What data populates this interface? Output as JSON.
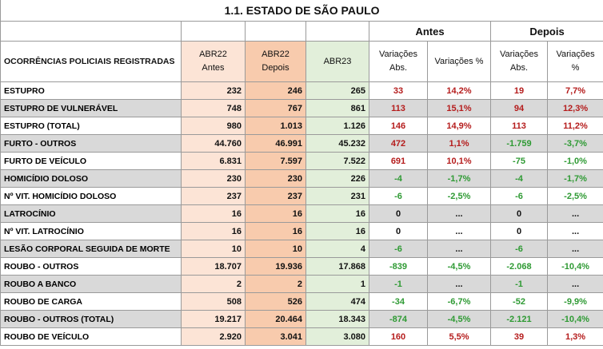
{
  "title": "1.1. ESTADO DE SÃO PAULO",
  "groups": {
    "antes": "Antes",
    "depois": "Depois"
  },
  "headers": {
    "ocorrencias": "OCORRÊNCIAS POLICIAIS REGISTRADAS",
    "abr22_antes_1": "ABR22",
    "abr22_antes_2": "Antes",
    "abr22_depois_1": "ABR22",
    "abr22_depois_2": "Depois",
    "abr23": "ABR23",
    "var_abs_1": "Variações",
    "var_abs_2": "Abs.",
    "var_pct": "Variações %",
    "dep_var_abs_1": "Variações",
    "dep_var_abs_2": "Abs.",
    "dep_var_pct_1": "Variações",
    "dep_var_pct_2": "%"
  },
  "rows": [
    {
      "name": "ESTUPRO",
      "abr22_antes": "232",
      "abr22_depois": "246",
      "abr23": "265",
      "antes_abs": "33",
      "antes_pct": "14,2%",
      "depois_abs": "19",
      "depois_pct": "7,7%"
    },
    {
      "name": "ESTUPRO DE VULNERÁVEL",
      "abr22_antes": "748",
      "abr22_depois": "767",
      "abr23": "861",
      "antes_abs": "113",
      "antes_pct": "15,1%",
      "depois_abs": "94",
      "depois_pct": "12,3%"
    },
    {
      "name": "ESTUPRO (TOTAL)",
      "abr22_antes": "980",
      "abr22_depois": "1.013",
      "abr23": "1.126",
      "antes_abs": "146",
      "antes_pct": "14,9%",
      "depois_abs": "113",
      "depois_pct": "11,2%"
    },
    {
      "name": "FURTO - OUTROS",
      "abr22_antes": "44.760",
      "abr22_depois": "46.991",
      "abr23": "45.232",
      "antes_abs": "472",
      "antes_pct": "1,1%",
      "depois_abs": "-1.759",
      "depois_pct": "-3,7%"
    },
    {
      "name": "FURTO DE VEÍCULO",
      "abr22_antes": "6.831",
      "abr22_depois": "7.597",
      "abr23": "7.522",
      "antes_abs": "691",
      "antes_pct": "10,1%",
      "depois_abs": "-75",
      "depois_pct": "-1,0%"
    },
    {
      "name": "HOMICÍDIO DOLOSO",
      "abr22_antes": "230",
      "abr22_depois": "230",
      "abr23": "226",
      "antes_abs": "-4",
      "antes_pct": "-1,7%",
      "depois_abs": "-4",
      "depois_pct": "-1,7%"
    },
    {
      "name": "Nº VIT. HOMICÍDIO DOLOSO",
      "abr22_antes": "237",
      "abr22_depois": "237",
      "abr23": "231",
      "antes_abs": "-6",
      "antes_pct": "-2,5%",
      "depois_abs": "-6",
      "depois_pct": "-2,5%"
    },
    {
      "name": "LATROCÍNIO",
      "abr22_antes": "16",
      "abr22_depois": "16",
      "abr23": "16",
      "antes_abs": "0",
      "antes_pct": "...",
      "depois_abs": "0",
      "depois_pct": "..."
    },
    {
      "name": "Nº VIT. LATROCÍNIO",
      "abr22_antes": "16",
      "abr22_depois": "16",
      "abr23": "16",
      "antes_abs": "0",
      "antes_pct": "...",
      "depois_abs": "0",
      "depois_pct": "..."
    },
    {
      "name": "LESÃO CORPORAL SEGUIDA DE MORTE",
      "abr22_antes": "10",
      "abr22_depois": "10",
      "abr23": "4",
      "antes_abs": "-6",
      "antes_pct": "...",
      "depois_abs": "-6",
      "depois_pct": "..."
    },
    {
      "name": "ROUBO - OUTROS",
      "abr22_antes": "18.707",
      "abr22_depois": "19.936",
      "abr23": "17.868",
      "antes_abs": "-839",
      "antes_pct": "-4,5%",
      "depois_abs": "-2.068",
      "depois_pct": "-10,4%"
    },
    {
      "name": "ROUBO A BANCO",
      "abr22_antes": "2",
      "abr22_depois": "2",
      "abr23": "1",
      "antes_abs": "-1",
      "antes_pct": "...",
      "depois_abs": "-1",
      "depois_pct": "..."
    },
    {
      "name": "ROUBO DE CARGA",
      "abr22_antes": "508",
      "abr22_depois": "526",
      "abr23": "474",
      "antes_abs": "-34",
      "antes_pct": "-6,7%",
      "depois_abs": "-52",
      "depois_pct": "-9,9%"
    },
    {
      "name": "ROUBO - OUTROS (TOTAL)",
      "abr22_antes": "19.217",
      "abr22_depois": "20.464",
      "abr23": "18.343",
      "antes_abs": "-874",
      "antes_pct": "-4,5%",
      "depois_abs": "-2.121",
      "depois_pct": "-10,4%"
    },
    {
      "name": "ROUBO DE VEÍCULO",
      "abr22_antes": "2.920",
      "abr22_depois": "3.041",
      "abr23": "3.080",
      "antes_abs": "160",
      "antes_pct": "5,5%",
      "depois_abs": "39",
      "depois_pct": "1,3%"
    }
  ],
  "colors": {
    "antes_bg": "#fce4d6",
    "depois_bg": "#f8cbad",
    "abr23_bg": "#e2efda",
    "increase": "#b51c1c",
    "decrease": "#2e9a33",
    "stripe": "#d9d9d9"
  }
}
